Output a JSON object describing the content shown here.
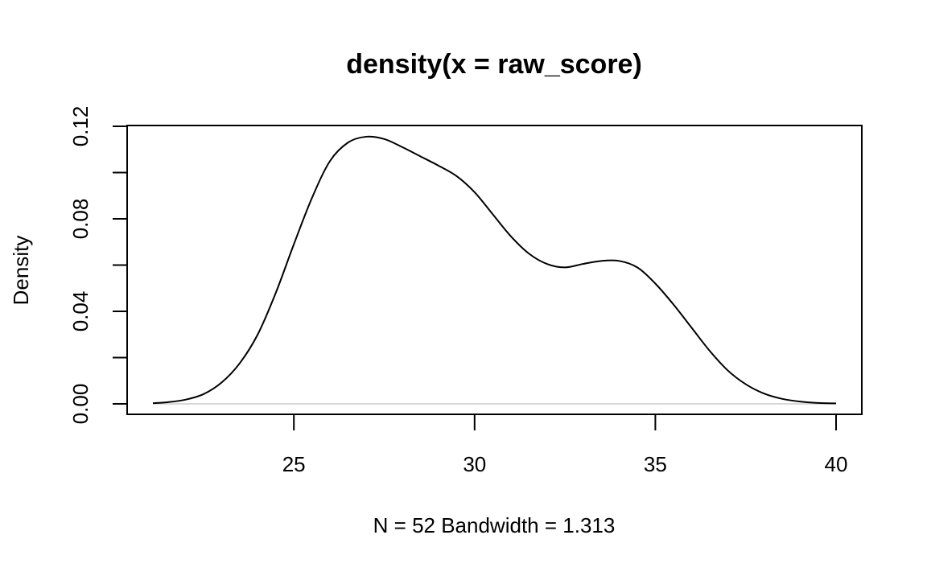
{
  "chart_data": {
    "type": "line",
    "title": "density(x = raw_score)",
    "xlabel": "N = 52   Bandwidth = 1.313",
    "ylabel": "Density",
    "xlim": [
      21.1,
      40.0
    ],
    "ylim": [
      0.0,
      0.12
    ],
    "x_ticks": [
      25,
      30,
      35,
      40
    ],
    "x_tick_labels": [
      "25",
      "30",
      "35",
      "40"
    ],
    "y_ticks": [
      0.0,
      0.02,
      0.04,
      0.06,
      0.08,
      0.1,
      0.12
    ],
    "y_tick_labels": [
      "0.00",
      "",
      "0.04",
      "",
      "0.08",
      "",
      "0.12"
    ],
    "grid": false,
    "zero_line": true,
    "colors": {
      "line": "#000000",
      "zero_line": "#cccccc"
    },
    "series": [
      {
        "x": [
          21.1,
          21.5,
          22.0,
          22.5,
          23.0,
          23.5,
          24.0,
          24.5,
          25.0,
          25.5,
          26.0,
          26.5,
          27.0,
          27.5,
          28.0,
          28.5,
          29.0,
          29.5,
          30.0,
          30.5,
          31.0,
          31.5,
          32.0,
          32.5,
          33.0,
          33.5,
          34.0,
          34.5,
          35.0,
          35.5,
          36.0,
          36.5,
          37.0,
          37.5,
          38.0,
          38.5,
          39.0,
          39.5,
          40.0
        ],
        "y": [
          0.0003,
          0.0007,
          0.0018,
          0.0042,
          0.0092,
          0.0175,
          0.03,
          0.048,
          0.069,
          0.089,
          0.105,
          0.113,
          0.1155,
          0.1145,
          0.111,
          0.107,
          0.103,
          0.0985,
          0.0915,
          0.082,
          0.0725,
          0.065,
          0.0605,
          0.059,
          0.0605,
          0.0618,
          0.0618,
          0.059,
          0.052,
          0.043,
          0.033,
          0.023,
          0.0145,
          0.0085,
          0.0045,
          0.0022,
          0.001,
          0.0004,
          0.0002
        ]
      }
    ]
  }
}
